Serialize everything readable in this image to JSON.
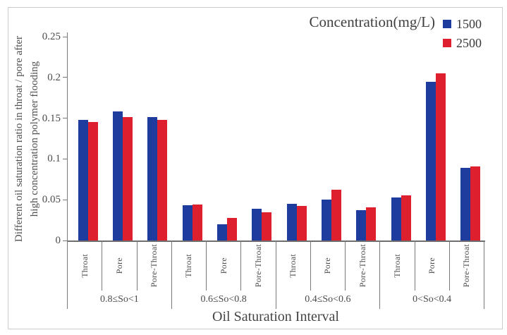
{
  "legend": {
    "title": "Concentration(mg/L)",
    "entries": [
      {
        "label": "1500",
        "color": "#1e3c9e"
      },
      {
        "label": "2500",
        "color": "#de1f2e"
      }
    ]
  },
  "axes": {
    "x_label": "Oil Saturation Interval",
    "y_label_line1": "Different oil saturation ratio in throat / pore after",
    "y_label_line2": "high concentration polymer flooding"
  },
  "chart_data": {
    "type": "bar",
    "title": "",
    "xlabel": "Oil Saturation Interval",
    "ylabel": "Different oil saturation ratio in throat / pore after high concentration polymer flooding",
    "ylim": [
      0,
      0.25
    ],
    "yticks": [
      {
        "value": 0,
        "label": "0"
      },
      {
        "value": 0.05,
        "label": "0.05"
      },
      {
        "value": 0.1,
        "label": "0.1"
      },
      {
        "value": 0.15,
        "label": "0.15"
      },
      {
        "value": 0.2,
        "label": "0.2"
      },
      {
        "value": 0.25,
        "label": "0.25"
      }
    ],
    "grid": false,
    "legend_title": "Concentration(mg/L)",
    "legend_position": "top-right",
    "group_labels": [
      "0.8≤So<1",
      "0.6≤So<0.8",
      "0.4≤So<0.6",
      "0<So<0.4"
    ],
    "categories": [
      "Throat",
      "Pore",
      "Pore-Throat",
      "Throat",
      "Pore",
      "Pore-Throat",
      "Throat",
      "Pore",
      "Pore-Throat",
      "Throat",
      "Pore",
      "Pore-Throat"
    ],
    "series": [
      {
        "name": "1500",
        "color": "#1e3c9e",
        "values": [
          0.148,
          0.158,
          0.151,
          0.043,
          0.02,
          0.039,
          0.045,
          0.05,
          0.037,
          0.053,
          0.195,
          0.089
        ]
      },
      {
        "name": "2500",
        "color": "#de1f2e",
        "values": [
          0.145,
          0.151,
          0.148,
          0.044,
          0.028,
          0.035,
          0.042,
          0.062,
          0.041,
          0.055,
          0.205,
          0.091
        ]
      }
    ]
  },
  "colors": {
    "bar_blue": "#1e3c9e",
    "bar_red": "#de1f2e",
    "axis_gray": "#7a7a7a",
    "frame_gray": "#cccccc",
    "text_gray": "#474747"
  }
}
